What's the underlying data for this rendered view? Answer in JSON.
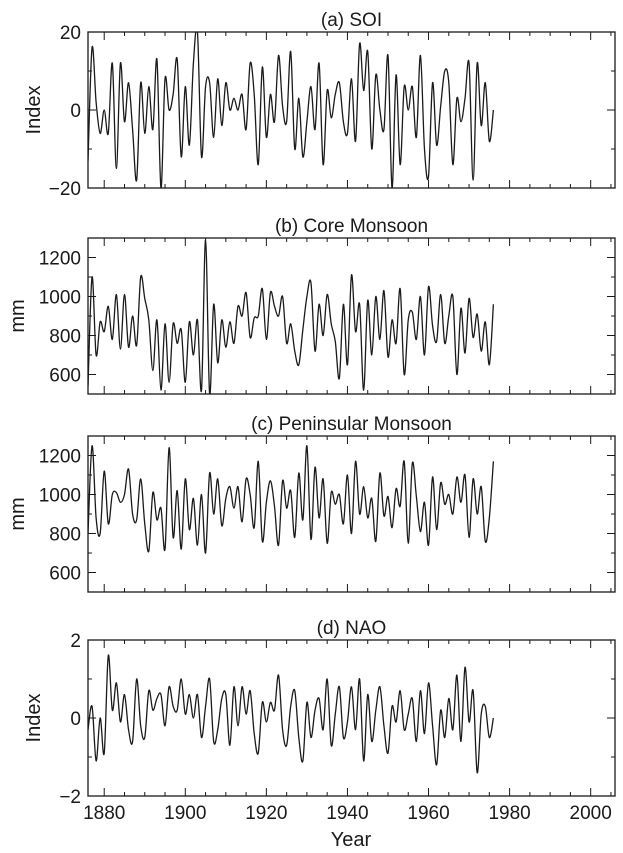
{
  "figure": {
    "xlabel": "Year",
    "xlim": [
      1876,
      2006
    ],
    "xticks_major": [
      1880,
      1900,
      1920,
      1940,
      1960,
      1980,
      2000
    ],
    "xtick_labels": [
      "1880",
      "1900",
      "1920",
      "1940",
      "1960",
      "1980",
      "2000"
    ],
    "line_color": "#1a1a1a"
  },
  "chart_data": [
    {
      "type": "line",
      "title": "(a)  SOI",
      "ylabel": "Index",
      "ylim": [
        -20,
        20
      ],
      "yticks": [
        -20,
        0,
        20
      ],
      "ytick_labels": [
        "−20",
        "0",
        "20"
      ],
      "x_start": 1876,
      "x_step": 1,
      "values": [
        -13,
        16,
        2,
        -6,
        0,
        -6,
        12,
        -15,
        12,
        -3,
        7,
        -5,
        -18,
        7,
        -6,
        6,
        -5,
        13,
        -20,
        8,
        0,
        4,
        13,
        -12,
        6,
        -9,
        12,
        20,
        -12,
        6,
        7,
        -7,
        8,
        -4,
        7,
        0,
        3,
        0,
        4,
        -5,
        12,
        4,
        -14,
        11,
        -7,
        4,
        -3,
        14,
        1,
        -3,
        15,
        -10,
        3,
        -12,
        -3,
        6,
        -5,
        12,
        -14,
        5,
        -2,
        4,
        7,
        -3,
        -6,
        8,
        -8,
        17,
        5,
        15,
        -10,
        9,
        0,
        -5,
        14,
        -20,
        9,
        -14,
        6,
        0,
        6,
        -7,
        14,
        -10,
        -17,
        7,
        -9,
        1,
        10,
        7,
        -14,
        3,
        -3,
        3,
        12,
        -18,
        12,
        -4,
        7,
        -8,
        0
      ]
    },
    {
      "type": "line",
      "title": "(b)  Core Monsoon",
      "ylabel": "mm",
      "ylim": [
        500,
        1300
      ],
      "yticks": [
        600,
        800,
        1000,
        1200
      ],
      "ytick_labels": [
        "600",
        "800",
        "1000",
        "1200"
      ],
      "x_start": 1876,
      "x_step": 1,
      "values": [
        540,
        1100,
        700,
        870,
        820,
        950,
        780,
        1010,
        730,
        1010,
        740,
        900,
        750,
        1100,
        990,
        880,
        620,
        880,
        520,
        860,
        560,
        860,
        760,
        830,
        560,
        870,
        700,
        880,
        520,
        1290,
        500,
        960,
        660,
        880,
        740,
        870,
        760,
        950,
        900,
        1020,
        790,
        890,
        900,
        1040,
        780,
        1020,
        950,
        900,
        1000,
        760,
        860,
        720,
        650,
        830,
        1000,
        1070,
        720,
        960,
        800,
        1010,
        860,
        770,
        580,
        960,
        650,
        1110,
        820,
        960,
        520,
        980,
        700,
        1000,
        780,
        1030,
        690,
        880,
        760,
        1040,
        600,
        880,
        920,
        780,
        1000,
        700,
        1050,
        850,
        770,
        1010,
        760,
        900,
        1000,
        600,
        940,
        710,
        990,
        790,
        910,
        720,
        870,
        650,
        960
      ]
    },
    {
      "type": "line",
      "title": "(c)  Peninsular Monsoon",
      "ylabel": "mm",
      "ylim": [
        500,
        1300
      ],
      "yticks": [
        600,
        800,
        1000,
        1200
      ],
      "ytick_labels": [
        "600",
        "800",
        "1000",
        "1200"
      ],
      "x_start": 1876,
      "x_step": 1,
      "values": [
        800,
        1250,
        880,
        800,
        1120,
        850,
        1000,
        1010,
        960,
        1000,
        1130,
        900,
        870,
        1080,
        850,
        710,
        1010,
        870,
        930,
        720,
        1240,
        780,
        1020,
        720,
        1080,
        820,
        980,
        740,
        1000,
        700,
        1110,
        900,
        1080,
        840,
        980,
        1040,
        930,
        1040,
        860,
        1080,
        1000,
        830,
        1170,
        760,
        960,
        1070,
        940,
        740,
        1070,
        930,
        1020,
        780,
        1110,
        870,
        1250,
        770,
        1140,
        880,
        1080,
        750,
        1010,
        950,
        1000,
        850,
        1100,
        800,
        1170,
        900,
        1040,
        880,
        980,
        760,
        1110,
        890,
        990,
        830,
        1030,
        940,
        1170,
        750,
        1160,
        990,
        810,
        960,
        740,
        1090,
        820,
        1060,
        950,
        1000,
        900,
        1090,
        960,
        1100,
        780,
        1080,
        900,
        1040,
        760,
        880,
        1170
      ]
    },
    {
      "type": "line",
      "title": "(d)  NAO",
      "ylabel": "Index",
      "ylim": [
        -2,
        2
      ],
      "yticks": [
        -2,
        0,
        2
      ],
      "ytick_labels": [
        "−2",
        "0",
        "2"
      ],
      "x_start": 1876,
      "x_step": 1,
      "values": [
        -0.3,
        0.3,
        -1.1,
        0.0,
        -0.9,
        1.6,
        0.2,
        0.9,
        -0.1,
        0.6,
        -0.3,
        -0.6,
        1.0,
        -0.2,
        -0.5,
        0.7,
        0.2,
        0.5,
        0.6,
        -0.2,
        0.8,
        0.3,
        0.2,
        1.0,
        0.1,
        0.6,
        0.0,
        0.6,
        -0.5,
        0.3,
        1.0,
        -0.6,
        -0.3,
        0.5,
        0.6,
        -0.7,
        0.8,
        -0.2,
        0.8,
        0.1,
        0.7,
        -0.4,
        -0.9,
        0.4,
        -0.1,
        0.4,
        0.2,
        1.1,
        -0.3,
        -0.7,
        0.3,
        0.7,
        -0.5,
        -1.1,
        0.4,
        -0.5,
        0.2,
        0.5,
        -0.3,
        1.0,
        -0.7,
        0.1,
        0.8,
        -0.5,
        -0.1,
        0.8,
        -0.3,
        1.0,
        -1.1,
        0.6,
        -0.6,
        0.2,
        0.8,
        -0.2,
        -0.9,
        0.3,
        -0.1,
        0.7,
        -0.3,
        0.1,
        0.5,
        -0.6,
        0.7,
        -0.4,
        0.9,
        -0.2,
        -1.2,
        0.2,
        -0.5,
        0.5,
        -0.3,
        1.1,
        -0.6,
        1.3,
        -0.1,
        0.7,
        -1.4,
        0.1,
        0.3,
        -0.5,
        0.0
      ]
    }
  ]
}
